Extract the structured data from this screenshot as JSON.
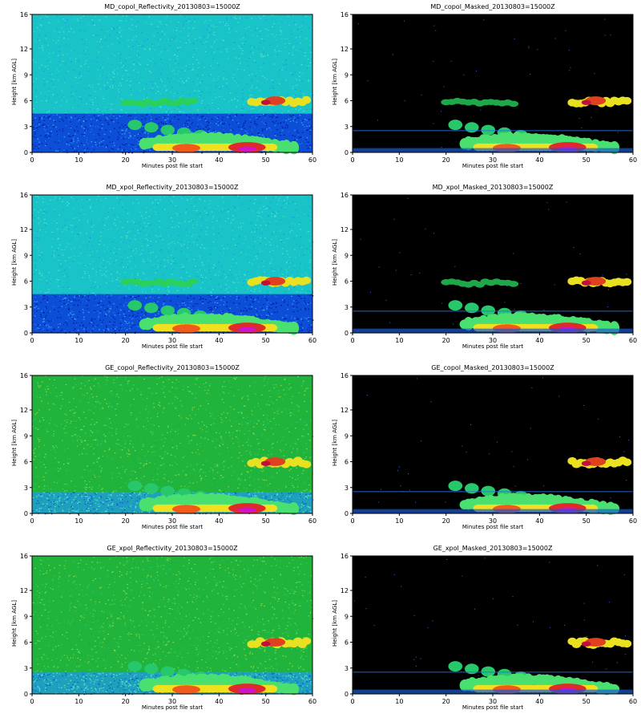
{
  "figure": {
    "description_colors": {
      "axis": "#000000"
    }
  },
  "chart_data": [
    {
      "type": "heatmap",
      "title": "MD_copol_Reflectivity_20130803=15000Z",
      "xlabel": "Minutes post file start",
      "ylabel": "Height [km AGL]",
      "xlim": [
        0,
        60
      ],
      "ylim": [
        0,
        16
      ],
      "xticks": [
        0,
        10,
        20,
        30,
        40,
        50,
        60
      ],
      "yticks": [
        0,
        3,
        6,
        9,
        12,
        16
      ],
      "background": "noise-cyan",
      "masked": false,
      "noise_band_top_km": 4.5
    },
    {
      "type": "heatmap",
      "title": "MD_copol_Masked_20130803=15000Z",
      "xlabel": "Minutes post file start",
      "ylabel": "Height [km AGL]",
      "xlim": [
        0,
        60
      ],
      "ylim": [
        0,
        16
      ],
      "xticks": [
        0,
        10,
        20,
        30,
        40,
        50,
        60
      ],
      "yticks": [
        0,
        3,
        6,
        9,
        12,
        16
      ],
      "background": "black",
      "masked": true
    },
    {
      "type": "heatmap",
      "title": "MD_xpol_Reflectivity_20130803=15000Z",
      "xlabel": "Minutes post file start",
      "ylabel": "Height [km AGL]",
      "xlim": [
        0,
        60
      ],
      "ylim": [
        0,
        16
      ],
      "xticks": [
        0,
        10,
        20,
        30,
        40,
        50,
        60
      ],
      "yticks": [
        0,
        3,
        6,
        9,
        12,
        16
      ],
      "background": "noise-cyan",
      "masked": false,
      "noise_band_top_km": 4.5
    },
    {
      "type": "heatmap",
      "title": "MD_xpol_Masked_20130803=15000Z",
      "xlabel": "Minutes post file start",
      "ylabel": "Height [km AGL]",
      "xlim": [
        0,
        60
      ],
      "ylim": [
        0,
        16
      ],
      "xticks": [
        0,
        10,
        20,
        30,
        40,
        50,
        60
      ],
      "yticks": [
        0,
        3,
        6,
        9,
        12,
        16
      ],
      "background": "black",
      "masked": true
    },
    {
      "type": "heatmap",
      "title": "GE_copol_Reflectivity_20130803=15000Z",
      "xlabel": "Minutes post file start",
      "ylabel": "Height [km AGL]",
      "xlim": [
        0,
        60
      ],
      "ylim": [
        0,
        16
      ],
      "xticks": [
        0,
        10,
        20,
        30,
        40,
        50,
        60
      ],
      "yticks": [
        0,
        3,
        6,
        9,
        12,
        16
      ],
      "background": "noise-green",
      "masked": false,
      "noise_band_top_km": 2.5
    },
    {
      "type": "heatmap",
      "title": "GE_copol_Masked_20130803=15000Z",
      "xlabel": "Minutes post file start",
      "ylabel": "Height [km AGL]",
      "xlim": [
        0,
        60
      ],
      "ylim": [
        0,
        16
      ],
      "xticks": [
        0,
        10,
        20,
        30,
        40,
        50,
        60
      ],
      "yticks": [
        0,
        3,
        6,
        9,
        12,
        16
      ],
      "background": "black",
      "masked": true
    },
    {
      "type": "heatmap",
      "title": "GE_xpol_Reflectivity_20130803=15000Z",
      "xlabel": "Minutes post file start",
      "ylabel": "Height [km AGL]",
      "xlim": [
        0,
        60
      ],
      "ylim": [
        0,
        16
      ],
      "xticks": [
        0,
        10,
        20,
        30,
        40,
        50,
        60
      ],
      "yticks": [
        0,
        3,
        6,
        9,
        12,
        16
      ],
      "background": "noise-green",
      "masked": false,
      "noise_band_top_km": 2.5
    },
    {
      "type": "heatmap",
      "title": "GE_xpol_Masked_20130803=15000Z",
      "xlabel": "Minutes post file start",
      "ylabel": "Height [km AGL]",
      "xlim": [
        0,
        60
      ],
      "ylim": [
        0,
        16
      ],
      "xticks": [
        0,
        10,
        20,
        30,
        40,
        50,
        60
      ],
      "yticks": [
        0,
        3,
        6,
        9,
        12,
        16
      ],
      "background": "black",
      "masked": true
    }
  ]
}
